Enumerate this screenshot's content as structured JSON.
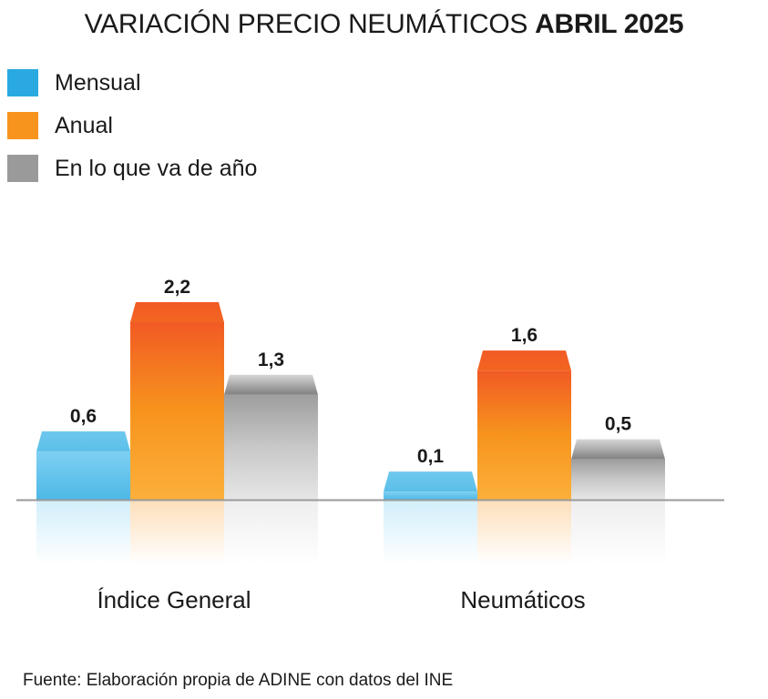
{
  "title": {
    "normal": "VARIACIÓN PRECIO NEUMÁTICOS",
    "bold": "ABRIL 2025"
  },
  "source": "Fuente: Elaboración propia de ADINE con datos del INE",
  "chart_data": {
    "type": "bar",
    "categories": [
      "Índice General",
      "Neumáticos"
    ],
    "series": [
      {
        "name": "Mensual",
        "values": [
          0.6,
          0.1
        ],
        "labels": [
          "0,6",
          "0,1"
        ],
        "color": "#5bbfe8",
        "legend_color": "#29a9e0"
      },
      {
        "name": "Anual",
        "values": [
          2.2,
          1.6
        ],
        "labels": [
          "2,2",
          "1,6"
        ],
        "color": "#f7941d",
        "legend_color": "#f7941d"
      },
      {
        "name": "En lo que va de año",
        "values": [
          1.3,
          0.5
        ],
        "labels": [
          "1,3",
          "0,5"
        ],
        "color": "#bdbdbd",
        "legend_color": "#9a9a9a"
      }
    ],
    "ylim": [
      0,
      2.2
    ],
    "grid": false,
    "legend_position": "top-left",
    "xlabel": "",
    "ylabel": ""
  }
}
